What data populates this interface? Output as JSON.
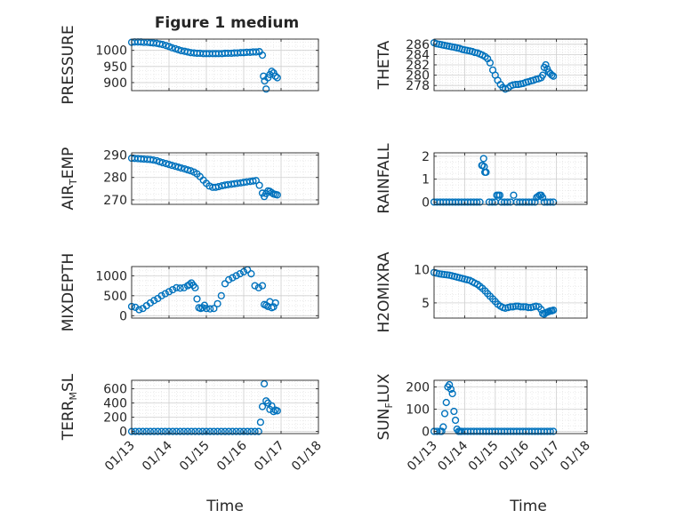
{
  "figure": {
    "title": "Figure 1 medium",
    "x_label": "Time",
    "x_ticks": [
      "01/13",
      "01/14",
      "01/15",
      "01/16",
      "01/17",
      "01/18"
    ],
    "colors": {
      "marker": "#0072bd",
      "axis": "#262626",
      "grid": "#d0d0d0",
      "minor_grid": "#e6e6e6"
    }
  },
  "chart_data": [
    {
      "type": "scatter",
      "id": "pressure",
      "ylabel": "PRESSURE",
      "ylim": [
        875,
        1035
      ],
      "yticks": [
        900,
        950,
        1000
      ],
      "series": [
        {
          "x": [
            13.0,
            13.08,
            13.17,
            13.25,
            13.33,
            13.42,
            13.5,
            13.58,
            13.67,
            13.75,
            13.83,
            13.92,
            14.0,
            14.08,
            14.17,
            14.25,
            14.33,
            14.42,
            14.5,
            14.58,
            14.67,
            14.75,
            14.83,
            14.92,
            15.0,
            15.08,
            15.17,
            15.25,
            15.33,
            15.42,
            15.5,
            15.58,
            15.67,
            15.75,
            15.83,
            15.92,
            16.0,
            16.08,
            16.17,
            16.25,
            16.33,
            16.42,
            16.5,
            16.53,
            16.56,
            16.6,
            16.65,
            16.7,
            16.75,
            16.8,
            16.85,
            16.9
          ],
          "y": [
            1025,
            1026,
            1026,
            1026,
            1025,
            1025,
            1024,
            1023,
            1022,
            1020,
            1018,
            1015,
            1012,
            1008,
            1005,
            1002,
            999,
            997,
            995,
            993,
            992,
            991,
            991,
            990,
            990,
            990,
            990,
            990,
            990,
            990,
            991,
            991,
            991,
            992,
            992,
            993,
            993,
            994,
            994,
            995,
            995,
            996,
            985,
            920,
            905,
            880,
            915,
            925,
            935,
            930,
            920,
            915
          ]
        }
      ]
    },
    {
      "type": "scatter",
      "id": "theta",
      "ylabel": "THETA",
      "ylim": [
        277,
        287
      ],
      "yticks": [
        278,
        280,
        282,
        284,
        286
      ],
      "series": [
        {
          "x": [
            13.0,
            13.08,
            13.17,
            13.25,
            13.33,
            13.42,
            13.5,
            13.58,
            13.67,
            13.75,
            13.83,
            13.92,
            14.0,
            14.08,
            14.17,
            14.25,
            14.33,
            14.42,
            14.5,
            14.58,
            14.67,
            14.75,
            14.83,
            14.92,
            15.0,
            15.08,
            15.17,
            15.25,
            15.33,
            15.42,
            15.5,
            15.58,
            15.67,
            15.75,
            15.83,
            15.92,
            16.0,
            16.08,
            16.17,
            16.25,
            16.33,
            16.42,
            16.5,
            16.55,
            16.6,
            16.65,
            16.7,
            16.75,
            16.8,
            16.85,
            16.9
          ],
          "y": [
            286.3,
            286.1,
            286.0,
            285.9,
            285.8,
            285.7,
            285.6,
            285.5,
            285.4,
            285.3,
            285.2,
            285.0,
            284.9,
            284.8,
            284.7,
            284.6,
            284.4,
            284.3,
            284.1,
            283.9,
            283.6,
            283.2,
            282.4,
            281.0,
            280.0,
            279.0,
            278.2,
            277.6,
            277.3,
            277.5,
            277.9,
            278.1,
            278.2,
            278.2,
            278.3,
            278.4,
            278.6,
            278.7,
            278.9,
            279.0,
            279.2,
            279.3,
            279.5,
            280.0,
            281.5,
            282.0,
            281.2,
            280.6,
            280.3,
            280.0,
            279.8
          ]
        }
      ]
    },
    {
      "type": "scatter",
      "id": "air_temp",
      "ylabel": "AIR_TEMP",
      "ylim": [
        268,
        291
      ],
      "yticks": [
        270,
        280,
        290
      ],
      "series": [
        {
          "x": [
            13.0,
            13.08,
            13.17,
            13.25,
            13.33,
            13.42,
            13.5,
            13.58,
            13.67,
            13.75,
            13.83,
            13.92,
            14.0,
            14.08,
            14.17,
            14.25,
            14.33,
            14.42,
            14.5,
            14.58,
            14.67,
            14.75,
            14.83,
            14.92,
            15.0,
            15.08,
            15.17,
            15.25,
            15.33,
            15.42,
            15.5,
            15.58,
            15.67,
            15.75,
            15.83,
            15.92,
            16.0,
            16.08,
            16.17,
            16.25,
            16.33,
            16.42,
            16.5,
            16.55,
            16.6,
            16.65,
            16.7,
            16.75,
            16.8,
            16.85,
            16.9
          ],
          "y": [
            288.6,
            288.5,
            288.4,
            288.3,
            288.2,
            288.1,
            288.0,
            287.8,
            287.5,
            287.0,
            286.6,
            286.2,
            285.8,
            285.4,
            285.0,
            284.6,
            284.2,
            283.8,
            283.4,
            283.0,
            282.4,
            281.6,
            280.4,
            278.8,
            277.4,
            276.2,
            275.6,
            275.6,
            275.9,
            276.3,
            276.6,
            276.8,
            277.0,
            277.2,
            277.4,
            277.6,
            277.8,
            278.0,
            278.2,
            278.4,
            278.6,
            276.5,
            273.0,
            271.5,
            272.8,
            274.0,
            273.8,
            273.2,
            272.6,
            272.4,
            272.2
          ]
        }
      ]
    },
    {
      "type": "scatter",
      "id": "rainfall",
      "ylabel": "RAINFALL",
      "ylim": [
        -0.1,
        2.15
      ],
      "yticks": [
        0,
        1,
        2
      ],
      "series": [
        {
          "x": [
            13.0,
            13.1,
            13.2,
            13.3,
            13.4,
            13.5,
            13.6,
            13.7,
            13.8,
            13.9,
            14.0,
            14.1,
            14.2,
            14.3,
            14.4,
            14.5,
            14.56,
            14.58,
            14.62,
            14.64,
            14.66,
            14.7,
            14.8,
            14.9,
            15.0,
            15.05,
            15.1,
            15.15,
            15.2,
            15.3,
            15.4,
            15.5,
            15.6,
            15.7,
            15.8,
            15.9,
            16.0,
            16.1,
            16.2,
            16.3,
            16.35,
            16.4,
            16.45,
            16.5,
            16.55,
            16.6,
            16.7,
            16.8,
            16.9
          ],
          "y": [
            0,
            0,
            0,
            0,
            0,
            0,
            0,
            0,
            0,
            0,
            0,
            0,
            0,
            0,
            0,
            0,
            1.6,
            1.6,
            1.9,
            1.55,
            1.3,
            1.3,
            0,
            0,
            0,
            0.3,
            0.3,
            0.3,
            0,
            0,
            0,
            0,
            0.3,
            0,
            0,
            0,
            0,
            0,
            0,
            0,
            0.2,
            0.25,
            0.3,
            0.3,
            0.2,
            0,
            0,
            0,
            0
          ]
        }
      ]
    },
    {
      "type": "scatter",
      "id": "mixdepth",
      "ylabel": "MIXDEPTH",
      "ylim": [
        -60,
        1230
      ],
      "yticks": [
        0,
        500,
        1000
      ],
      "series": [
        {
          "x": [
            13.0,
            13.1,
            13.2,
            13.3,
            13.4,
            13.5,
            13.6,
            13.7,
            13.8,
            13.9,
            14.0,
            14.1,
            14.2,
            14.3,
            14.4,
            14.5,
            14.55,
            14.6,
            14.65,
            14.7,
            14.75,
            14.8,
            14.85,
            14.9,
            14.95,
            15.0,
            15.1,
            15.2,
            15.3,
            15.4,
            15.5,
            15.6,
            15.7,
            15.8,
            15.9,
            16.0,
            16.1,
            16.2,
            16.3,
            16.4,
            16.5,
            16.55,
            16.6,
            16.65,
            16.7,
            16.75,
            16.8,
            16.85
          ],
          "y": [
            230,
            210,
            150,
            180,
            250,
            320,
            380,
            430,
            500,
            550,
            600,
            650,
            700,
            690,
            700,
            750,
            780,
            820,
            760,
            700,
            420,
            200,
            180,
            200,
            260,
            180,
            170,
            180,
            300,
            500,
            800,
            900,
            950,
            1000,
            1050,
            1100,
            1150,
            1050,
            750,
            700,
            750,
            280,
            260,
            230,
            350,
            200,
            220,
            320
          ]
        }
      ]
    },
    {
      "type": "scatter",
      "id": "h2omixra",
      "ylabel": "H2OMIXRA",
      "ylim": [
        2.7,
        10.5
      ],
      "yticks": [
        5,
        10
      ],
      "series": [
        {
          "x": [
            13.0,
            13.08,
            13.17,
            13.25,
            13.33,
            13.42,
            13.5,
            13.58,
            13.67,
            13.75,
            13.83,
            13.92,
            14.0,
            14.08,
            14.17,
            14.25,
            14.33,
            14.42,
            14.5,
            14.58,
            14.67,
            14.75,
            14.83,
            14.92,
            15.0,
            15.08,
            15.17,
            15.25,
            15.33,
            15.42,
            15.5,
            15.58,
            15.67,
            15.75,
            15.83,
            15.92,
            16.0,
            16.08,
            16.17,
            16.25,
            16.33,
            16.42,
            16.5,
            16.55,
            16.6,
            16.65,
            16.7,
            16.75,
            16.8,
            16.85,
            16.9
          ],
          "y": [
            9.6,
            9.5,
            9.4,
            9.35,
            9.3,
            9.25,
            9.2,
            9.1,
            9.0,
            8.9,
            8.8,
            8.7,
            8.6,
            8.5,
            8.4,
            8.2,
            8.0,
            7.8,
            7.5,
            7.2,
            6.8,
            6.4,
            6.0,
            5.6,
            5.2,
            4.8,
            4.5,
            4.3,
            4.2,
            4.3,
            4.4,
            4.4,
            4.5,
            4.5,
            4.4,
            4.4,
            4.4,
            4.3,
            4.3,
            4.4,
            4.5,
            4.4,
            4.0,
            3.4,
            3.3,
            3.5,
            3.6,
            3.7,
            3.8,
            3.8,
            3.9
          ]
        }
      ]
    },
    {
      "type": "scatter",
      "id": "terr_msl",
      "ylabel": "TERR_MSL",
      "ylim": [
        -30,
        720
      ],
      "yticks": [
        0,
        200,
        400,
        600
      ],
      "series": [
        {
          "x": [
            13.0,
            13.1,
            13.2,
            13.3,
            13.4,
            13.5,
            13.6,
            13.7,
            13.8,
            13.9,
            14.0,
            14.1,
            14.2,
            14.3,
            14.4,
            14.5,
            14.6,
            14.7,
            14.8,
            14.9,
            15.0,
            15.1,
            15.2,
            15.3,
            15.4,
            15.5,
            15.6,
            15.7,
            15.8,
            15.9,
            16.0,
            16.1,
            16.2,
            16.3,
            16.4,
            16.45,
            16.5,
            16.55,
            16.6,
            16.65,
            16.7,
            16.75,
            16.8,
            16.85,
            16.9
          ],
          "y": [
            0,
            0,
            0,
            0,
            0,
            0,
            0,
            0,
            0,
            0,
            0,
            0,
            0,
            0,
            0,
            0,
            0,
            0,
            0,
            0,
            0,
            0,
            0,
            0,
            0,
            0,
            0,
            0,
            0,
            0,
            0,
            0,
            0,
            0,
            0,
            130,
            350,
            670,
            430,
            400,
            310,
            360,
            280,
            300,
            290
          ]
        }
      ]
    },
    {
      "type": "scatter",
      "id": "sun_flux",
      "ylabel": "SUN_FLUX",
      "ylim": [
        -10,
        230
      ],
      "yticks": [
        0,
        100,
        200
      ],
      "series": [
        {
          "x": [
            13.0,
            13.1,
            13.2,
            13.25,
            13.3,
            13.35,
            13.4,
            13.45,
            13.5,
            13.55,
            13.6,
            13.65,
            13.7,
            13.75,
            13.8,
            13.85,
            13.9,
            14.0,
            14.1,
            14.2,
            14.3,
            14.4,
            14.5,
            14.6,
            14.7,
            14.8,
            14.9,
            15.0,
            15.1,
            15.2,
            15.3,
            15.4,
            15.5,
            15.6,
            15.7,
            15.8,
            15.9,
            16.0,
            16.1,
            16.2,
            16.3,
            16.4,
            16.5,
            16.6,
            16.7,
            16.8,
            16.9
          ],
          "y": [
            0,
            0,
            0,
            0,
            20,
            80,
            130,
            200,
            210,
            190,
            170,
            90,
            50,
            10,
            0,
            0,
            0,
            0,
            0,
            0,
            0,
            0,
            0,
            0,
            0,
            0,
            0,
            0,
            0,
            0,
            0,
            0,
            0,
            0,
            0,
            0,
            0,
            0,
            0,
            0,
            0,
            0,
            0,
            0,
            0,
            0,
            0
          ]
        }
      ]
    }
  ]
}
